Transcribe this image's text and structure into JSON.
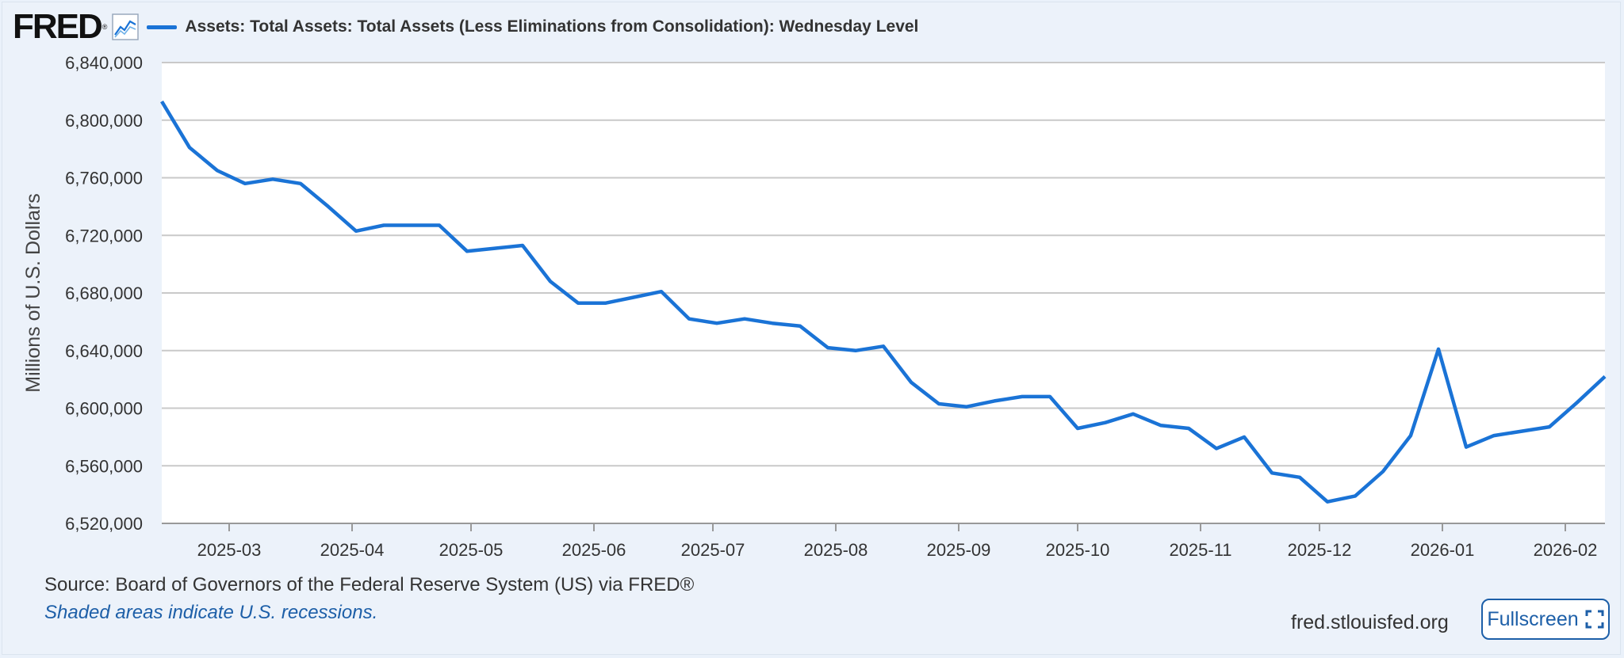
{
  "header": {
    "logo_text": "FRED",
    "logo_reg": "®",
    "series_title": "Assets: Total Assets: Total Assets (Less Eliminations from Consolidation): Wednesday Level"
  },
  "footer": {
    "source": "Source: Board of Governors of the Federal Reserve System (US) via FRED®",
    "note": "Shaded areas indicate U.S. recessions.",
    "site": "fred.stlouisfed.org",
    "fullscreen_label": "Fullscreen"
  },
  "colors": {
    "series": "#1a73d6",
    "plot_bg": "#ffffff",
    "grid": "#c9c9c9",
    "page_bg": "#ecf2fa"
  },
  "chart_data": {
    "type": "line",
    "ylabel": "Millions of U.S. Dollars",
    "ylim": [
      6520000,
      6840000
    ],
    "yticks": [
      6520000,
      6560000,
      6600000,
      6640000,
      6680000,
      6720000,
      6760000,
      6800000,
      6840000
    ],
    "ytick_labels": [
      "6,520,000",
      "6,560,000",
      "6,600,000",
      "6,640,000",
      "6,680,000",
      "6,720,000",
      "6,760,000",
      "6,800,000",
      "6,840,000"
    ],
    "xlim": [
      "2025-02-12",
      "2026-02-11"
    ],
    "xticks": [
      "2025-03-01",
      "2025-04-01",
      "2025-05-01",
      "2025-06-01",
      "2025-07-01",
      "2025-08-01",
      "2025-09-01",
      "2025-10-01",
      "2025-11-01",
      "2025-12-01",
      "2026-01-01",
      "2026-02-01"
    ],
    "xtick_labels": [
      "2025-03",
      "2025-04",
      "2025-05",
      "2025-06",
      "2025-07",
      "2025-08",
      "2025-09",
      "2025-10",
      "2025-11",
      "2025-12",
      "2026-01",
      "2026-02"
    ],
    "grid": true,
    "series": [
      {
        "x": [
          "2025-02-12",
          "2025-02-19",
          "2025-02-26",
          "2025-03-05",
          "2025-03-12",
          "2025-03-19",
          "2025-03-26",
          "2025-04-02",
          "2025-04-09",
          "2025-04-16",
          "2025-04-23",
          "2025-04-30",
          "2025-05-07",
          "2025-05-14",
          "2025-05-21",
          "2025-05-28",
          "2025-06-04",
          "2025-06-11",
          "2025-06-18",
          "2025-06-25",
          "2025-07-02",
          "2025-07-09",
          "2025-07-16",
          "2025-07-23",
          "2025-07-30",
          "2025-08-06",
          "2025-08-13",
          "2025-08-20",
          "2025-08-27",
          "2025-09-03",
          "2025-09-10",
          "2025-09-17",
          "2025-09-24",
          "2025-10-01",
          "2025-10-08",
          "2025-10-15",
          "2025-10-22",
          "2025-10-29",
          "2025-11-05",
          "2025-11-12",
          "2025-11-19",
          "2025-11-26",
          "2025-12-03",
          "2025-12-10",
          "2025-12-17",
          "2025-12-24",
          "2025-12-31",
          "2026-01-07",
          "2026-01-14",
          "2026-01-21",
          "2026-01-28",
          "2026-02-04",
          "2026-02-11"
        ],
        "y": [
          6813000,
          6781000,
          6765000,
          6756000,
          6759000,
          6756000,
          6740000,
          6723000,
          6727000,
          6727000,
          6727000,
          6709000,
          6711000,
          6713000,
          6688000,
          6673000,
          6673000,
          6677000,
          6681000,
          6662000,
          6659000,
          6662000,
          6659000,
          6657000,
          6642000,
          6640000,
          6643000,
          6618000,
          6603000,
          6601000,
          6605000,
          6608000,
          6608000,
          6586000,
          6590000,
          6596000,
          6588000,
          6586000,
          6572000,
          6580000,
          6555000,
          6552000,
          6535000,
          6539000,
          6556000,
          6581000,
          6641000,
          6573000,
          6581000,
          6584000,
          6587000,
          6604000,
          6622000
        ]
      }
    ]
  }
}
